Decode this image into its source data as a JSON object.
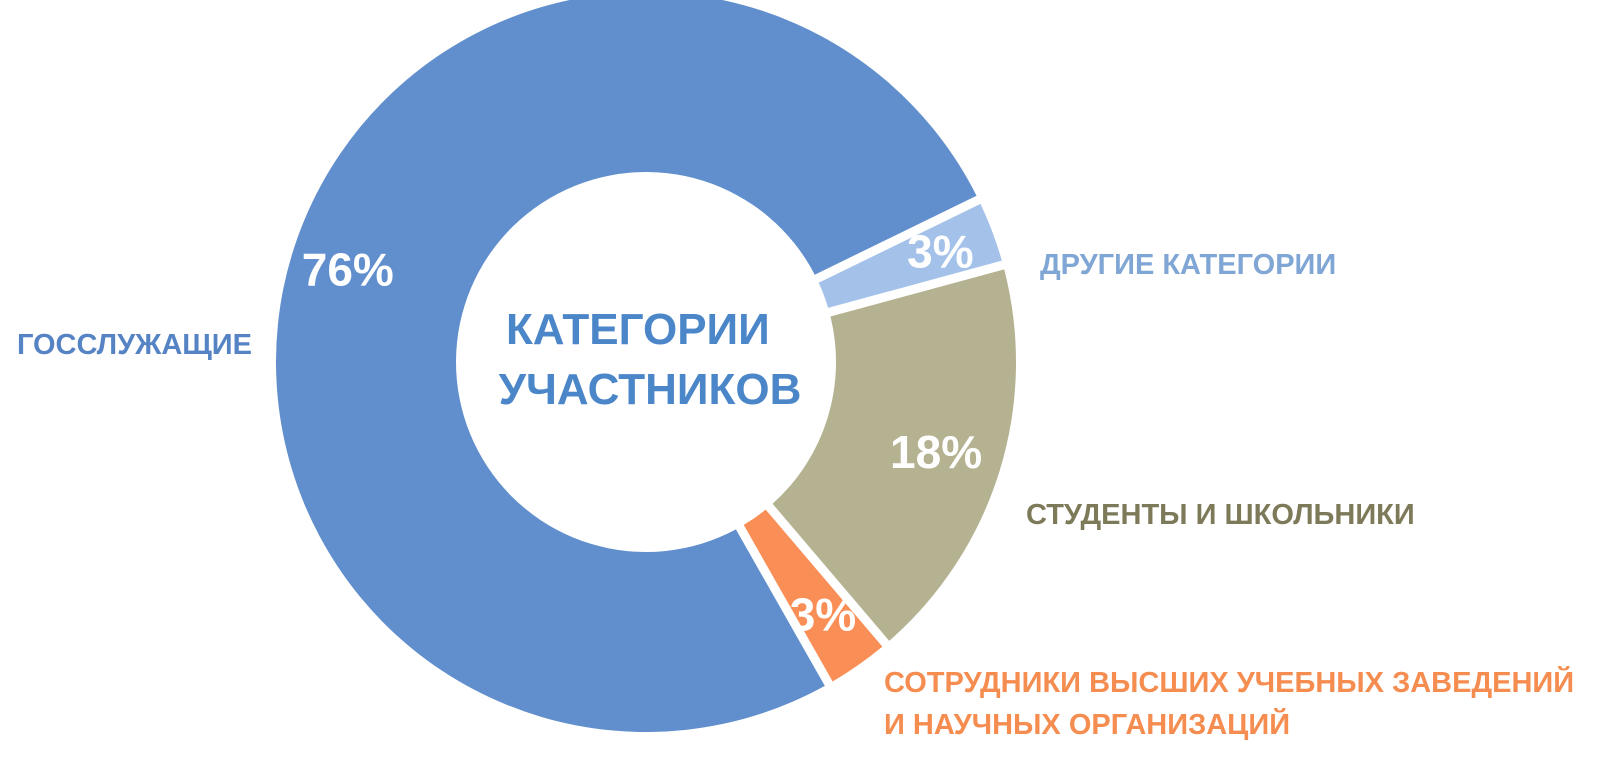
{
  "chart_data": {
    "type": "pie",
    "variant": "donut",
    "center_title": [
      "КАТЕГОРИИ",
      "УЧАСТНИКОВ"
    ],
    "slices": [
      {
        "label": [
          "ДРУГИЕ КАТЕГОРИИ"
        ],
        "value": 3,
        "value_label": "3%",
        "color": "#a4c2e9",
        "label_color": "#7fa6d4"
      },
      {
        "label": [
          "СТУДЕНТЫ И ШКОЛЬНИКИ"
        ],
        "value": 18,
        "value_label": "18%",
        "color": "#b5b291",
        "label_color": "#7d7a5a"
      },
      {
        "label": [
          "СОТРУДНИКИ ВЫСШИХ УЧЕБНЫХ ЗАВЕДЕНИЙ",
          "И НАУЧНЫХ ОРГАНИЗАЦИЙ"
        ],
        "value": 3,
        "value_label": "3%",
        "color": "#f98f56",
        "label_color": "#f58c50"
      },
      {
        "label": [
          "ГОССЛУЖАЩИЕ"
        ],
        "value": 76,
        "value_label": "76%",
        "color": "#618fcd",
        "label_color": "#5583c4"
      }
    ],
    "center_title_color": "#4b86c8",
    "legend": "none"
  }
}
